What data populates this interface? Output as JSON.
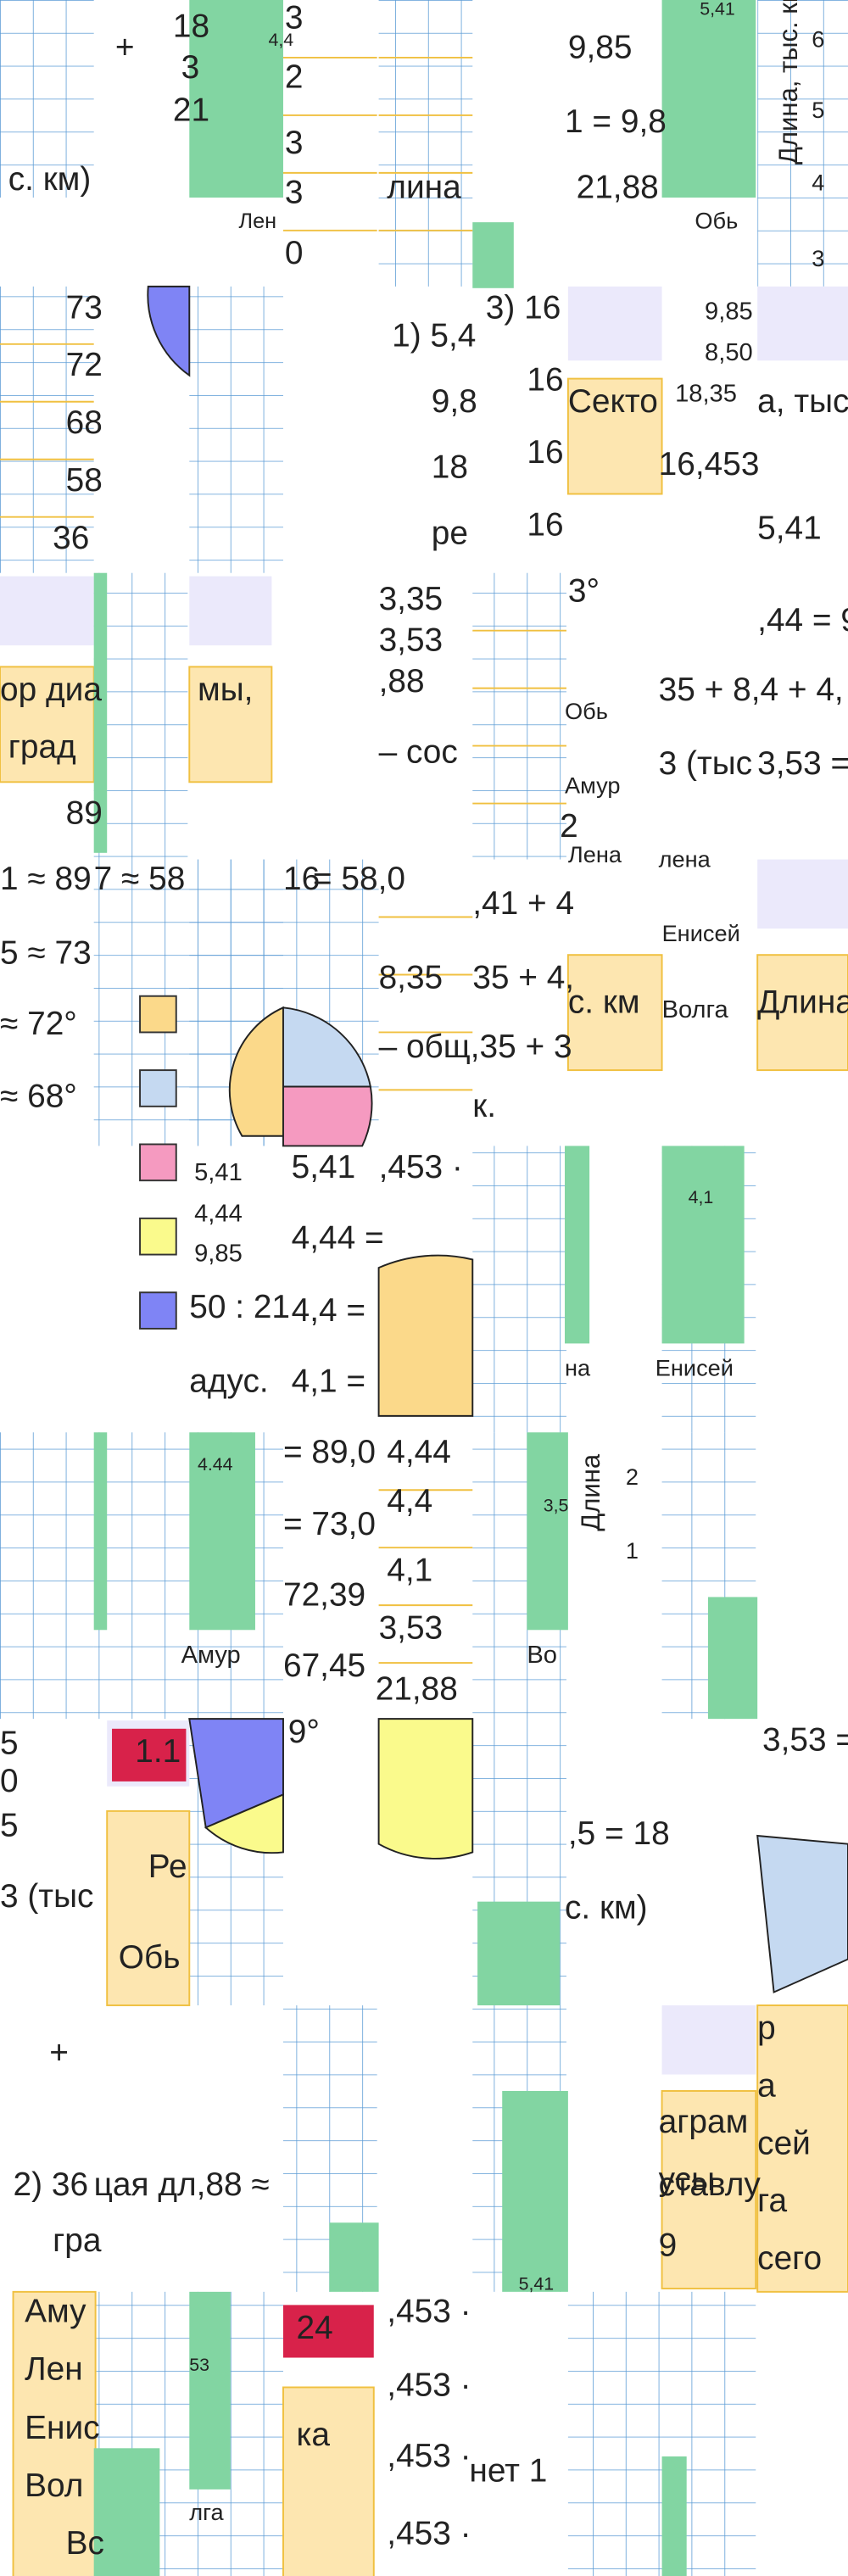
{
  "fragments": [
    "+",
    "18",
    "3",
    "21",
    "4,4",
    "3",
    "2",
    "3",
    "3",
    "с. км)",
    "Лен",
    "0",
    "лина",
    "9,85",
    "1 = 9,8",
    "21,88",
    "Обь",
    "5,41",
    "6",
    "5",
    "4",
    "3",
    "Длина, тыс. км",
    "73",
    "72",
    "68",
    "58",
    "36",
    "1) 5,4",
    "9,8",
    "18",
    "ре",
    "3) 16",
    "16",
    "16",
    "16",
    "Секто",
    "9,85",
    "8,50",
    "18,35",
    "16,453",
    "5,41",
    "а, тыс",
    "ор диа",
    "мы,",
    "град",
    "89",
    "3,35",
    "3,53",
    ",88",
    "– сос",
    "3°",
    ",44 = 9",
    "35 + 8,4 + 4,",
    "Обь",
    "3 (тыс",
    "3,53 =",
    "Амур",
    "2",
    "Лена",
    "лена",
    "1 ≈ 89",
    "7 ≈ 58",
    "16",
    "= 58,0",
    ",41 + 4",
    "Енисей",
    "5 ≈ 73",
    "8,35",
    "35 + 4,",
    "с. км",
    "Волга",
    "Длина",
    "≈ 72°",
    "– общ,35 + 3",
    "≈ 68°",
    "к.",
    "5,41",
    "4,44",
    "9,85",
    "5,41",
    ",453 ·",
    "4,44 =",
    "50 : 21",
    "4,4 =",
    "адус.",
    "4,1 =",
    "4,1",
    "на",
    "Енисей",
    "4.44",
    "= 89,0",
    "4,44",
    "3,5",
    "Длина",
    "2",
    "1",
    "= 73,0",
    "4,4",
    "72,39",
    "4,1",
    "67,45",
    "3,53",
    "21,88",
    "Амур",
    "Во",
    "1.1",
    "Ре",
    "Обь",
    "3 (тыс",
    "9°",
    "5",
    "0",
    "5",
    "3,53 =",
    ",5 = 18",
    "с. км)",
    "р",
    "а",
    "+",
    "2) 36",
    "цая дл,88 ≈",
    "гра",
    "ставлу",
    "аграм",
    "усы",
    "сей",
    "га",
    "сего",
    "9",
    "5,41",
    "Аму",
    "Лен",
    "Енис",
    "Вол",
    "Вс",
    "53",
    "лга",
    "24",
    "ка",
    ",453 ·",
    ",453 ·",
    ",453 ·",
    "нет 1",
    ",453 ·"
  ]
}
